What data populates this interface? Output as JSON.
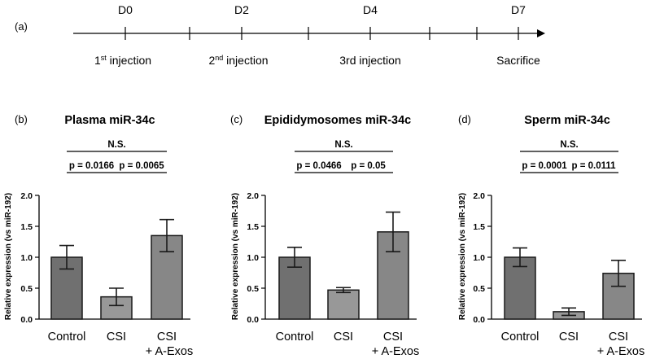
{
  "panel_a": {
    "label": "(a)",
    "days": [
      "D0",
      "D2",
      "D4",
      "D7"
    ],
    "events": [
      {
        "base": "1",
        "sup": "st",
        "rest": " injection"
      },
      {
        "base": "2",
        "sup": "nd",
        "rest": "  injection"
      },
      {
        "text": "3rd injection"
      },
      {
        "text": "Sacrifice"
      }
    ]
  },
  "chart_data": [
    {
      "type": "bar",
      "panel_label": "(b)",
      "title": "Plasma miR-34c",
      "ylabel": "Relative expression (vs miR-192)",
      "ylim": [
        0,
        2.0
      ],
      "yticks": [
        "0.0",
        "0.5",
        "1.0",
        "1.5",
        "2.0"
      ],
      "categories": [
        [
          "Control"
        ],
        [
          "CSI"
        ],
        [
          "CSI",
          "+ A-Exos"
        ]
      ],
      "values": [
        1.0,
        0.36,
        1.35
      ],
      "errors": [
        0.19,
        0.14,
        0.26
      ],
      "bar_colors": [
        "#707070",
        "#989898",
        "#878787"
      ],
      "comparisons": [
        {
          "label": "p = 0.0166",
          "from": 0,
          "to": 1
        },
        {
          "label": "p = 0.0065",
          "from": 1,
          "to": 2
        },
        {
          "label": "N.S.",
          "from": 0,
          "to": 2
        }
      ]
    },
    {
      "type": "bar",
      "panel_label": "(c)",
      "title": "Epididymosomes miR-34c",
      "ylabel": "Relative expression (vs miR-192)",
      "ylim": [
        0,
        2.0
      ],
      "yticks": [
        "0.0",
        "0.5",
        "1.0",
        "1.5",
        "2.0"
      ],
      "categories": [
        [
          "Control"
        ],
        [
          "CSI"
        ],
        [
          "CSI",
          "+ A-Exos"
        ]
      ],
      "values": [
        1.0,
        0.47,
        1.41
      ],
      "errors": [
        0.16,
        0.04,
        0.32
      ],
      "bar_colors": [
        "#707070",
        "#989898",
        "#878787"
      ],
      "comparisons": [
        {
          "label": "p = 0.0466",
          "from": 0,
          "to": 1
        },
        {
          "label": "p = 0.05",
          "from": 1,
          "to": 2
        },
        {
          "label": "N.S.",
          "from": 0,
          "to": 2
        }
      ]
    },
    {
      "type": "bar",
      "panel_label": "(d)",
      "title": "Sperm miR-34c",
      "ylabel": "Relative expression (vs miR-192)",
      "ylim": [
        0,
        2.0
      ],
      "yticks": [
        "0.0",
        "0.5",
        "1.0",
        "1.5",
        "2.0"
      ],
      "categories": [
        [
          "Control"
        ],
        [
          "CSI"
        ],
        [
          "CSI",
          "+ A-Exos"
        ]
      ],
      "values": [
        1.0,
        0.12,
        0.74
      ],
      "errors": [
        0.15,
        0.06,
        0.21
      ],
      "bar_colors": [
        "#707070",
        "#989898",
        "#878787"
      ],
      "comparisons": [
        {
          "label": "p = 0.0001",
          "from": 0,
          "to": 1
        },
        {
          "label": "p = 0.0111",
          "from": 1,
          "to": 2
        },
        {
          "label": "N.S.",
          "from": 0,
          "to": 2
        }
      ]
    }
  ]
}
